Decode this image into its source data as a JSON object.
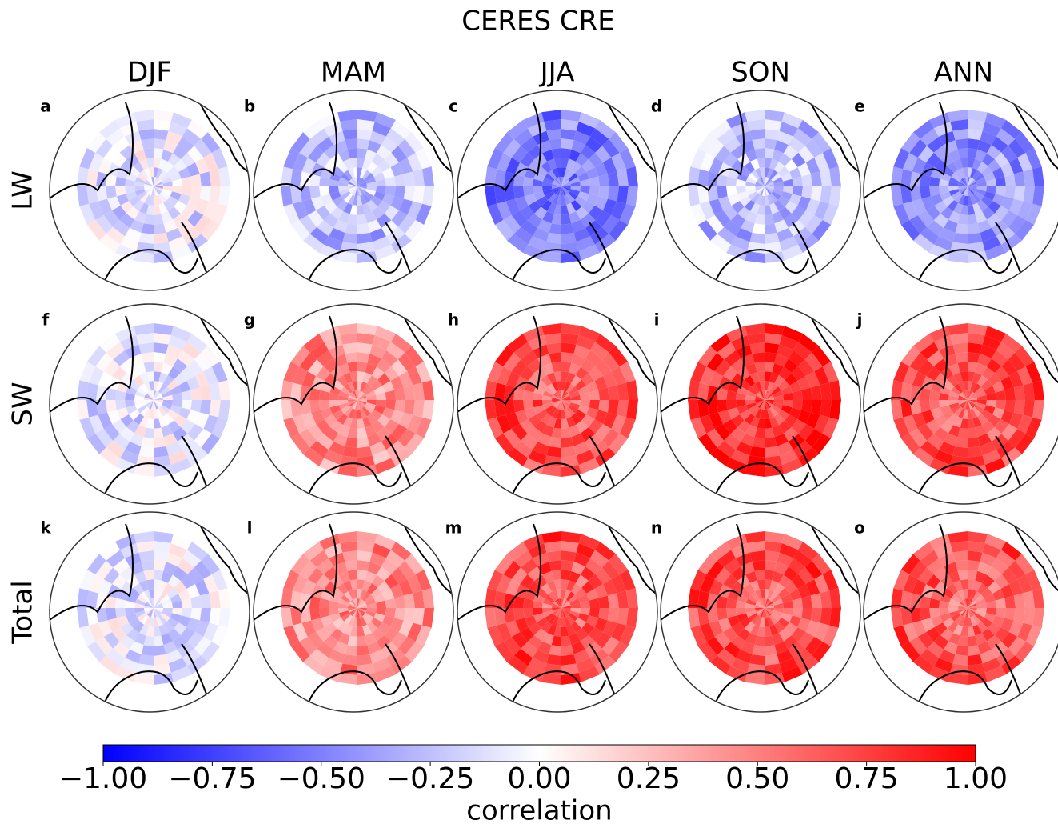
{
  "chart_data": {
    "type": "map-grid",
    "title": "CERES CRE",
    "columns": [
      "DJF",
      "MAM",
      "JJA",
      "SON",
      "ANN"
    ],
    "rows": [
      "LW",
      "SW",
      "Total"
    ],
    "panels": [
      [
        "a",
        "b",
        "c",
        "d",
        "e"
      ],
      [
        "f",
        "g",
        "h",
        "i",
        "j"
      ],
      [
        "k",
        "l",
        "m",
        "n",
        "o"
      ]
    ],
    "colorbar": {
      "label": "correlation",
      "lim": [
        -1,
        1
      ],
      "ticks": [
        {
          "value": -1,
          "label": "−1.00"
        },
        {
          "value": -0.75,
          "label": "−0.75"
        },
        {
          "value": -0.5,
          "label": "−0.50"
        },
        {
          "value": -0.25,
          "label": "−0.25"
        },
        {
          "value": 0,
          "label": "0.00"
        },
        {
          "value": 0.25,
          "label": "0.25"
        },
        {
          "value": 0.5,
          "label": "0.50"
        },
        {
          "value": 0.75,
          "label": "0.75"
        },
        {
          "value": 1,
          "label": "1.00"
        }
      ]
    }
  }
}
